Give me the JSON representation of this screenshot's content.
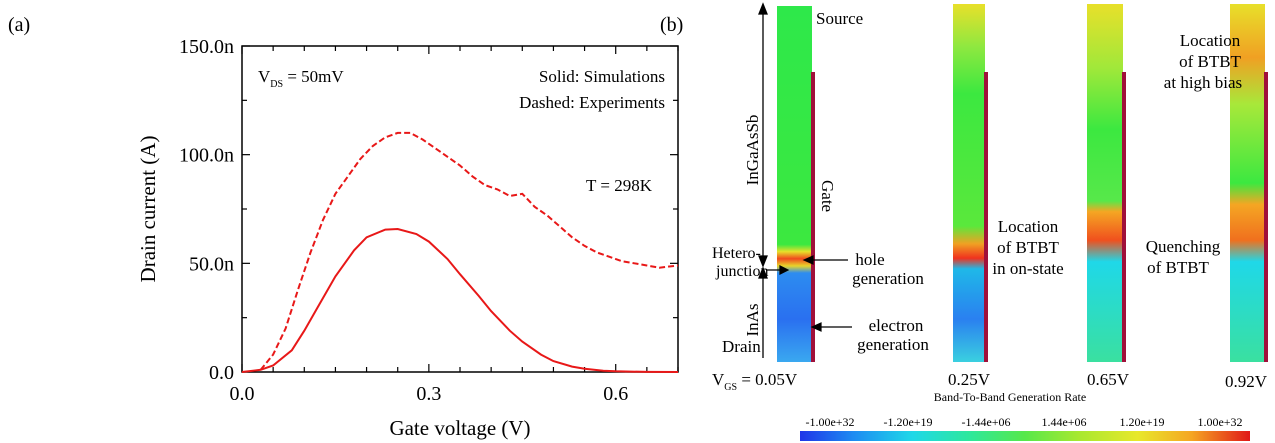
{
  "panel_a": {
    "label": "(a)",
    "annotations": {
      "vds_main": "V",
      "vds_sub": "DS",
      "vds_value": " = 50mV",
      "legend_solid": "Solid: Simulations",
      "legend_dashed": "Dashed: Experiments",
      "temperature": "T = 298K"
    }
  },
  "panel_b": {
    "label": "(b)",
    "labels": {
      "source": "Source",
      "gate": "Gate",
      "ingaassb": "InGaAsSb",
      "hetero_1": "Hetero-",
      "hetero_2": "junction",
      "inas": "InAs",
      "drain": "Drain",
      "hole_1": "hole",
      "hole_2": "generation",
      "electron_1": "electron",
      "electron_2": "generation",
      "loc_on_1": "Location",
      "loc_on_2": "of BTBT",
      "loc_on_3": "in on-state",
      "loc_high_1": "Location",
      "loc_high_2": "of BTBT",
      "loc_high_3": "at high bias",
      "quench_1": "Quenching",
      "quench_2": "of BTBT",
      "vgs_main": "V",
      "vgs_sub": "GS",
      "vgs_eq": " = ",
      "colorbar_title": "Band-To-Band Generation Rate"
    },
    "bias_labels": [
      "0.05V",
      "0.25V",
      "0.65V",
      "0.92V"
    ],
    "colorbar_ticks": [
      "-1.00e+32",
      "-1.20e+19",
      "-1.44e+06",
      "1.44e+06",
      "1.20e+19",
      "1.00e+32"
    ],
    "colorbar_colors": [
      "#1f35e8",
      "#1e8cf2",
      "#1fd8e8",
      "#2ee89a",
      "#57e84a",
      "#a8e830",
      "#e8e82a",
      "#f5a623",
      "#f0461e",
      "#e01818"
    ]
  },
  "chart_data": {
    "type": "line",
    "xlabel": "Gate voltage (V)",
    "ylabel": "Drain current (A)",
    "xlim": [
      0.0,
      0.7
    ],
    "ylim": [
      0,
      1.5e-07
    ],
    "xticks": [
      0.0,
      0.3,
      0.6
    ],
    "xtick_labels": [
      "0.0",
      "0.3",
      "0.6"
    ],
    "yticks": [
      0,
      5e-08,
      1e-07,
      1.5e-07
    ],
    "ytick_labels": [
      "0.0",
      "50.0n",
      "100.0n",
      "150.0n"
    ],
    "series": [
      {
        "name": "Simulations",
        "style": "solid",
        "color": "#e81818",
        "x": [
          0.0,
          0.03,
          0.05,
          0.08,
          0.1,
          0.12,
          0.15,
          0.18,
          0.2,
          0.23,
          0.25,
          0.28,
          0.3,
          0.33,
          0.35,
          0.38,
          0.4,
          0.43,
          0.45,
          0.48,
          0.5,
          0.53,
          0.55,
          0.58,
          0.6,
          0.65,
          0.7
        ],
        "y": [
          0.0,
          1e-09,
          3e-09,
          1e-08,
          1.9e-08,
          2.9e-08,
          4.4e-08,
          5.6e-08,
          6.2e-08,
          6.55e-08,
          6.58e-08,
          6.35e-08,
          6e-08,
          5.2e-08,
          4.5e-08,
          3.5e-08,
          2.8e-08,
          1.9e-08,
          1.4e-08,
          8e-09,
          5e-09,
          2.5e-09,
          1.5e-09,
          6e-10,
          3e-10,
          5e-11,
          0.0
        ]
      },
      {
        "name": "Experiments",
        "style": "dashed",
        "color": "#e81818",
        "x": [
          0.03,
          0.05,
          0.07,
          0.09,
          0.11,
          0.13,
          0.15,
          0.17,
          0.19,
          0.21,
          0.23,
          0.25,
          0.27,
          0.29,
          0.31,
          0.33,
          0.35,
          0.37,
          0.39,
          0.41,
          0.43,
          0.45,
          0.47,
          0.49,
          0.51,
          0.53,
          0.55,
          0.57,
          0.59,
          0.61,
          0.63,
          0.65,
          0.67,
          0.7
        ],
        "y": [
          1e-09,
          8e-09,
          2e-08,
          3.8e-08,
          5.5e-08,
          7e-08,
          8.2e-08,
          9e-08,
          9.8e-08,
          1.04e-07,
          1.08e-07,
          1.1e-07,
          1.1e-07,
          1.07e-07,
          1.03e-07,
          9.9e-08,
          9.5e-08,
          9e-08,
          8.6e-08,
          8.4e-08,
          8.1e-08,
          8.2e-08,
          7.6e-08,
          7.2e-08,
          6.7e-08,
          6.2e-08,
          5.8e-08,
          5.5e-08,
          5.3e-08,
          5.1e-08,
          5e-08,
          4.9e-08,
          4.8e-08,
          4.9e-08
        ]
      }
    ]
  }
}
